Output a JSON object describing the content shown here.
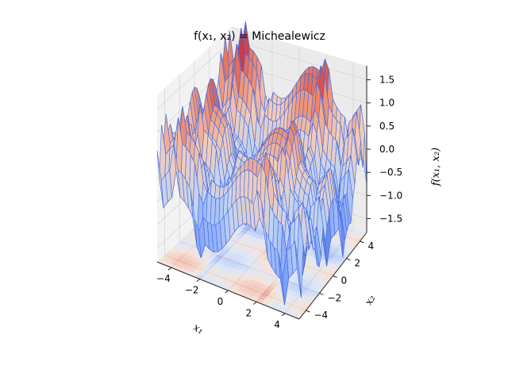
{
  "chart_data": {
    "type": "surface3d",
    "title": "f(x₁, x₂) =  Michealewicz",
    "xlabel": "x₁",
    "ylabel": "x₂",
    "zlabel": "f(x₁, x₂)",
    "xlim": [
      -5,
      5
    ],
    "ylim": [
      -5,
      5
    ],
    "zlim": [
      -1.8,
      1.8
    ],
    "x_ticks": [
      "−4",
      "−2",
      "0",
      "2",
      "4"
    ],
    "y_ticks": [
      "−4",
      "−2",
      "0",
      "2",
      "4"
    ],
    "z_ticks": [
      "−1.5",
      "−1.0",
      "−0.5",
      "0.0",
      "0.5",
      "1.0",
      "1.5"
    ],
    "x_tick_values": [
      -4,
      -2,
      0,
      2,
      4
    ],
    "y_tick_values": [
      -4,
      -2,
      0,
      2,
      4
    ],
    "z_tick_values": [
      -1.5,
      -1.0,
      -0.5,
      0.0,
      0.5,
      1.0,
      1.5
    ],
    "colormap": "coolwarm",
    "surface_edge_color": "#4169e1",
    "contour_projection": "bottom",
    "grid": true
  }
}
